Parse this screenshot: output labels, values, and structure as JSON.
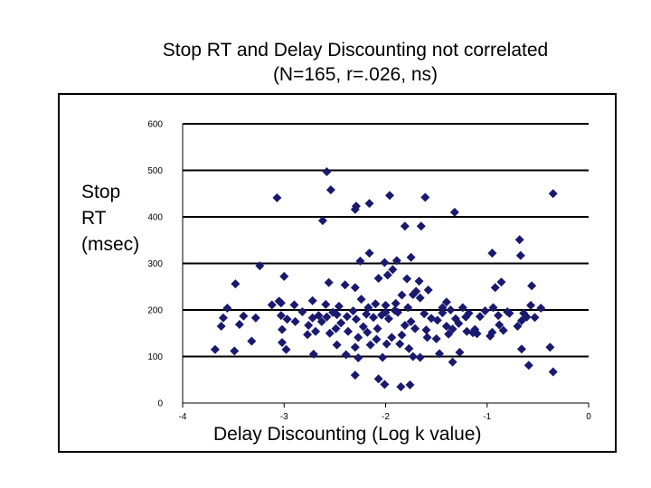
{
  "colors": {
    "marker": "#191970",
    "grid": "#000000",
    "background": "#ffffff"
  },
  "chart_data": {
    "type": "scatter",
    "title": [
      "Stop RT and Delay Discounting not correlated",
      "(N=165, r=.026, ns)"
    ],
    "ylabel": [
      "Stop",
      "RT",
      "(msec)"
    ],
    "xlabel": "Delay Discounting (Log k value)",
    "xlim": [
      -4,
      0
    ],
    "ylim": [
      0,
      600
    ],
    "xticks": [
      "-4",
      "-3",
      "-2",
      "-1",
      "0"
    ],
    "yticks": [
      "0",
      "100",
      "200",
      "300",
      "400",
      "500",
      "600"
    ],
    "grid": "horizontal",
    "marker": "diamond",
    "points": [
      [
        -2.58,
        497
      ],
      [
        -3.07,
        441
      ],
      [
        -2.54,
        458
      ],
      [
        -2.16,
        429
      ],
      [
        -2.29,
        423
      ],
      [
        -2.3,
        416
      ],
      [
        -1.96,
        446
      ],
      [
        -1.61,
        442
      ],
      [
        -1.32,
        410
      ],
      [
        -0.35,
        450
      ],
      [
        -2.62,
        392
      ],
      [
        -1.81,
        380
      ],
      [
        -1.65,
        380
      ],
      [
        -0.68,
        351
      ],
      [
        -0.67,
        317
      ],
      [
        -0.95,
        322
      ],
      [
        -2.16,
        322
      ],
      [
        -2.25,
        305
      ],
      [
        -3.24,
        295
      ],
      [
        -2.01,
        302
      ],
      [
        -1.89,
        306
      ],
      [
        -1.75,
        313
      ],
      [
        -3.0,
        272
      ],
      [
        -3.48,
        256
      ],
      [
        -2.56,
        259
      ],
      [
        -2.4,
        254
      ],
      [
        -2.3,
        248
      ],
      [
        -2.07,
        268
      ],
      [
        -1.98,
        275
      ],
      [
        -1.93,
        287
      ],
      [
        -1.79,
        267
      ],
      [
        -1.67,
        262
      ],
      [
        -0.86,
        260
      ],
      [
        -0.92,
        248
      ],
      [
        -1.4,
        217
      ],
      [
        -3.56,
        204
      ],
      [
        -3.6,
        183
      ],
      [
        -3.4,
        187
      ],
      [
        -3.12,
        211
      ],
      [
        -3.03,
        215
      ],
      [
        -2.9,
        211
      ],
      [
        -2.72,
        220
      ],
      [
        -2.59,
        212
      ],
      [
        -2.46,
        208
      ],
      [
        -2.24,
        223
      ],
      [
        -2.17,
        205
      ],
      [
        -2.1,
        213
      ],
      [
        -2.0,
        210
      ],
      [
        -1.9,
        214
      ],
      [
        -1.84,
        232
      ],
      [
        -1.73,
        233
      ],
      [
        -1.66,
        226
      ],
      [
        -1.44,
        205
      ],
      [
        -1.36,
        200
      ],
      [
        -1.24,
        205
      ],
      [
        -1.21,
        185
      ],
      [
        -1.18,
        193
      ],
      [
        -1.07,
        186
      ],
      [
        -1.02,
        198
      ],
      [
        -0.88,
        168
      ],
      [
        -0.78,
        193
      ],
      [
        -0.64,
        193
      ],
      [
        -0.53,
        184
      ],
      [
        -0.56,
        252
      ],
      [
        -0.47,
        204
      ],
      [
        -3.62,
        165
      ],
      [
        -3.44,
        169
      ],
      [
        -3.03,
        188
      ],
      [
        -2.97,
        180
      ],
      [
        -2.89,
        175
      ],
      [
        -2.76,
        167
      ],
      [
        -2.72,
        183
      ],
      [
        -2.63,
        175
      ],
      [
        -2.58,
        185
      ],
      [
        -2.48,
        190
      ],
      [
        -2.38,
        186
      ],
      [
        -2.29,
        180
      ],
      [
        -2.19,
        191
      ],
      [
        -2.12,
        184
      ],
      [
        -2.04,
        189
      ],
      [
        -2.0,
        195
      ],
      [
        -1.91,
        199
      ],
      [
        -1.81,
        167
      ],
      [
        -1.75,
        175
      ],
      [
        -1.71,
        160
      ],
      [
        -1.62,
        192
      ],
      [
        -1.55,
        182
      ],
      [
        -1.49,
        178
      ],
      [
        -1.4,
        165
      ],
      [
        -1.34,
        159
      ],
      [
        -1.28,
        171
      ],
      [
        -1.2,
        154
      ],
      [
        -1.1,
        149
      ],
      [
        -0.95,
        152
      ],
      [
        -0.84,
        156
      ],
      [
        -0.66,
        177
      ],
      [
        -0.61,
        185
      ],
      [
        -3.02,
        158
      ],
      [
        -2.77,
        147
      ],
      [
        -2.69,
        154
      ],
      [
        -2.55,
        150
      ],
      [
        -2.49,
        160
      ],
      [
        -2.37,
        154
      ],
      [
        -2.27,
        141
      ],
      [
        -2.18,
        152
      ],
      [
        -2.09,
        137
      ],
      [
        -1.94,
        141
      ],
      [
        -1.84,
        146
      ],
      [
        -1.59,
        141
      ],
      [
        -1.5,
        138
      ],
      [
        -1.38,
        148
      ],
      [
        -1.14,
        151
      ],
      [
        -0.97,
        144
      ],
      [
        -3.32,
        133
      ],
      [
        -3.02,
        130
      ],
      [
        -2.48,
        125
      ],
      [
        -2.3,
        120
      ],
      [
        -2.15,
        125
      ],
      [
        -1.99,
        127
      ],
      [
        -1.86,
        127
      ],
      [
        -1.77,
        117
      ],
      [
        -3.68,
        115
      ],
      [
        -3.49,
        112
      ],
      [
        -2.98,
        115
      ],
      [
        -2.71,
        105
      ],
      [
        -2.39,
        104
      ],
      [
        -2.27,
        97
      ],
      [
        -2.03,
        98
      ],
      [
        -1.66,
        98
      ],
      [
        -1.47,
        106
      ],
      [
        -1.27,
        109
      ],
      [
        -0.66,
        116
      ],
      [
        -0.38,
        120
      ],
      [
        -2.3,
        60
      ],
      [
        -1.73,
        100
      ],
      [
        -1.34,
        88
      ],
      [
        -0.59,
        81
      ],
      [
        -0.35,
        67
      ],
      [
        -2.07,
        52
      ],
      [
        -2.01,
        40
      ],
      [
        -1.85,
        35
      ],
      [
        -1.76,
        39
      ],
      [
        -3.28,
        183
      ],
      [
        -3.05,
        219
      ],
      [
        -2.82,
        196
      ],
      [
        -2.66,
        188
      ],
      [
        -2.52,
        195
      ],
      [
        -2.44,
        172
      ],
      [
        -2.32,
        198
      ],
      [
        -2.22,
        164
      ],
      [
        -2.08,
        160
      ],
      [
        -1.97,
        181
      ],
      [
        -1.88,
        195
      ],
      [
        -1.78,
        205
      ],
      [
        -1.7,
        240
      ],
      [
        -1.58,
        243
      ],
      [
        -1.44,
        194
      ],
      [
        -1.31,
        181
      ],
      [
        -0.94,
        205
      ],
      [
        -0.8,
        196
      ],
      [
        -0.57,
        210
      ],
      [
        -1.12,
        158
      ],
      [
        -0.89,
        188
      ],
      [
        -0.7,
        165
      ],
      [
        -1.6,
        157
      ]
    ]
  }
}
